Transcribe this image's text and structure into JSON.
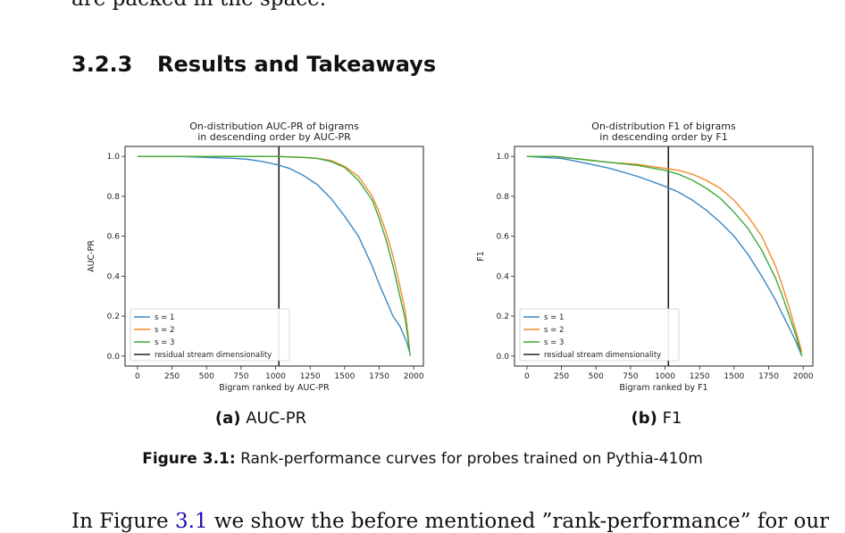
{
  "page_top_text": "are packed in the space.",
  "section": {
    "number": "3.2.3",
    "title": "Results and Takeaways"
  },
  "subfigures": [
    {
      "label": "(a)",
      "name": "AUC-PR"
    },
    {
      "label": "(b)",
      "name": "F1"
    }
  ],
  "figure_caption": {
    "label": "Figure 3.1:",
    "text": "Rank-performance curves for probes trained on Pythia-410m"
  },
  "body_text": {
    "before": "In Figure ",
    "ref": "3.1",
    "after": " we show the before mentioned ”rank-performance” for our"
  },
  "colors": {
    "s1": "#3b87c2",
    "s2": "#f58a2a",
    "s3": "#3aaa3a",
    "vline": "#222222"
  },
  "chart_data": [
    {
      "type": "line",
      "title": "On-distribution AUC-PR of bigrams",
      "subtitle": "in descending order by AUC-PR",
      "xlabel": "Bigram ranked by AUC-PR",
      "ylabel": "AUC-PR",
      "xlim": [
        -90,
        2070
      ],
      "ylim": [
        -0.05,
        1.05
      ],
      "xticks": [
        0,
        250,
        500,
        750,
        1000,
        1250,
        1500,
        1750,
        2000
      ],
      "yticks": [
        0.0,
        0.2,
        0.4,
        0.6,
        0.8,
        1.0
      ],
      "legend_position": "lower-left",
      "vline": {
        "x": 1024,
        "name": "residual stream dimensionality"
      },
      "series": [
        {
          "name": "s = 1",
          "color_key": "s1",
          "x": [
            0,
            300,
            500,
            700,
            800,
            900,
            1000,
            1100,
            1200,
            1300,
            1400,
            1500,
            1600,
            1700,
            1750,
            1800,
            1850,
            1900,
            1950,
            1970
          ],
          "y": [
            1.0,
            1.0,
            0.995,
            0.99,
            0.985,
            0.975,
            0.96,
            0.94,
            0.905,
            0.86,
            0.79,
            0.7,
            0.6,
            0.45,
            0.36,
            0.28,
            0.2,
            0.15,
            0.07,
            0.02
          ]
        },
        {
          "name": "s = 2",
          "color_key": "s2",
          "x": [
            0,
            500,
            1000,
            1200,
            1300,
            1400,
            1500,
            1600,
            1700,
            1750,
            1800,
            1850,
            1900,
            1940,
            1960,
            1970
          ],
          "y": [
            1.0,
            1.0,
            1.0,
            0.995,
            0.99,
            0.98,
            0.95,
            0.9,
            0.8,
            0.72,
            0.62,
            0.5,
            0.35,
            0.22,
            0.1,
            0.02
          ]
        },
        {
          "name": "s = 3",
          "color_key": "s3",
          "x": [
            0,
            500,
            1000,
            1200,
            1300,
            1400,
            1500,
            1600,
            1700,
            1750,
            1800,
            1850,
            1900,
            1940,
            1960,
            1975
          ],
          "y": [
            1.0,
            1.0,
            1.0,
            0.995,
            0.99,
            0.975,
            0.945,
            0.88,
            0.78,
            0.69,
            0.58,
            0.45,
            0.3,
            0.18,
            0.08,
            0.0
          ]
        }
      ]
    },
    {
      "type": "line",
      "title": "On-distribution F1 of bigrams",
      "subtitle": "in descending order by F1",
      "xlabel": "Bigram ranked by F1",
      "ylabel": "F1",
      "xlim": [
        -90,
        2070
      ],
      "ylim": [
        -0.05,
        1.05
      ],
      "xticks": [
        0,
        250,
        500,
        750,
        1000,
        1250,
        1500,
        1750,
        2000
      ],
      "yticks": [
        0.0,
        0.2,
        0.4,
        0.6,
        0.8,
        1.0
      ],
      "legend_position": "lower-left",
      "vline": {
        "x": 1024,
        "name": "residual stream dimensionality"
      },
      "series": [
        {
          "name": "s = 1",
          "color_key": "s1",
          "x": [
            0,
            250,
            400,
            600,
            800,
            1000,
            1100,
            1200,
            1300,
            1400,
            1500,
            1600,
            1700,
            1800,
            1850,
            1900,
            1950,
            1990
          ],
          "y": [
            1.0,
            0.99,
            0.97,
            0.94,
            0.9,
            0.85,
            0.82,
            0.78,
            0.73,
            0.67,
            0.6,
            0.51,
            0.4,
            0.28,
            0.21,
            0.14,
            0.07,
            0.0
          ]
        },
        {
          "name": "s = 2",
          "color_key": "s2",
          "x": [
            0,
            200,
            400,
            600,
            800,
            1000,
            1100,
            1200,
            1300,
            1400,
            1500,
            1600,
            1700,
            1800,
            1850,
            1900,
            1950,
            1990
          ],
          "y": [
            1.0,
            1.0,
            0.985,
            0.97,
            0.96,
            0.94,
            0.93,
            0.91,
            0.88,
            0.84,
            0.78,
            0.7,
            0.6,
            0.45,
            0.35,
            0.24,
            0.12,
            0.02
          ]
        },
        {
          "name": "s = 3",
          "color_key": "s3",
          "x": [
            0,
            200,
            400,
            600,
            800,
            1000,
            1100,
            1200,
            1300,
            1400,
            1500,
            1600,
            1700,
            1800,
            1850,
            1900,
            1950,
            1990
          ],
          "y": [
            1.0,
            1.0,
            0.985,
            0.97,
            0.955,
            0.93,
            0.91,
            0.88,
            0.84,
            0.79,
            0.72,
            0.64,
            0.53,
            0.39,
            0.3,
            0.2,
            0.1,
            0.0
          ]
        }
      ]
    }
  ]
}
